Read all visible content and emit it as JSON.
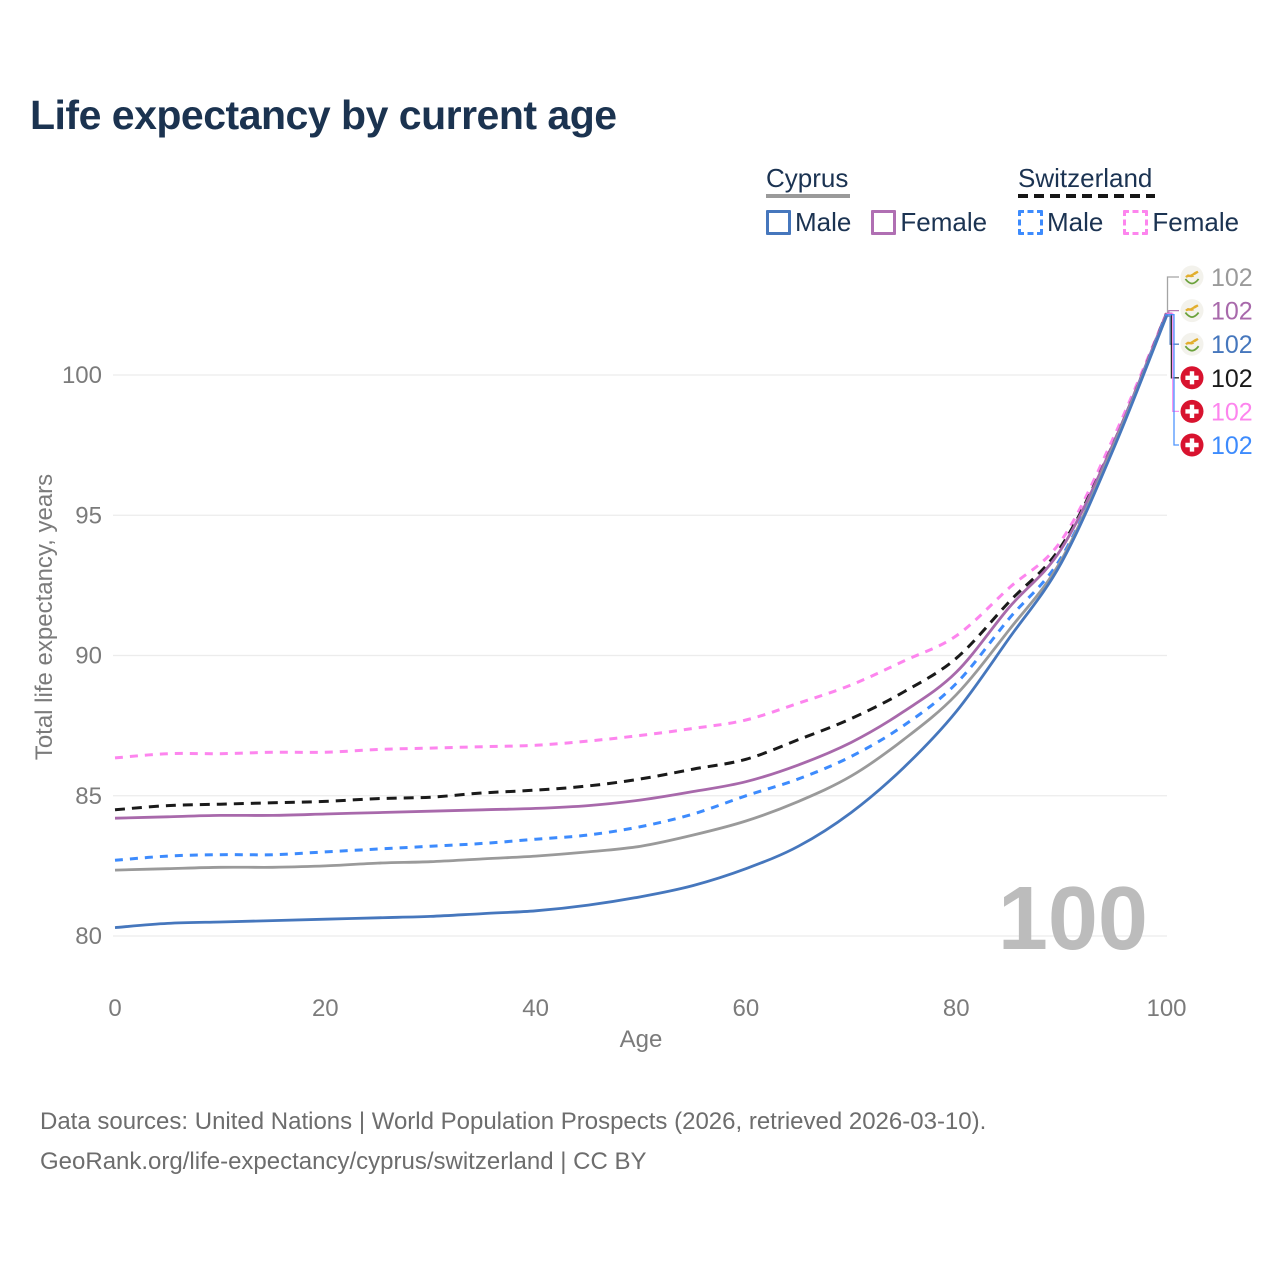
{
  "title": "Life expectancy by current age",
  "watermark_age": "100",
  "legend": {
    "groups": [
      {
        "name": "Cyprus",
        "line_style": "solid",
        "underline_color": "#9a9a9a",
        "items": [
          {
            "label": "Male",
            "color": "#4677bd"
          },
          {
            "label": "Female",
            "color": "#b06fb3"
          }
        ]
      },
      {
        "name": "Switzerland",
        "line_style": "dashed",
        "underline_color": "#161616",
        "items": [
          {
            "label": "Male",
            "color": "#3d8bfd"
          },
          {
            "label": "Female",
            "color": "#fd85ee"
          }
        ]
      }
    ]
  },
  "footer": {
    "line1": "Data sources: United Nations | World Population Prospects (2026, retrieved 2026-03-10).",
    "line2": "GeoRank.org/life-expectancy/cyprus/switzerland | CC BY"
  },
  "chart_data": {
    "type": "line",
    "title": "Life expectancy by current age",
    "xlabel": "Age",
    "ylabel": "Total life expectancy, years",
    "xlim": [
      0,
      100
    ],
    "ylim": [
      79.5,
      102.5
    ],
    "x_ticks": [
      0,
      20,
      40,
      60,
      80,
      100
    ],
    "y_ticks": [
      80,
      85,
      90,
      95,
      100
    ],
    "grid": "horizontal-only",
    "legend_position": "top-right",
    "current_age_watermark": 100,
    "ages": [
      0,
      5,
      10,
      15,
      20,
      25,
      30,
      35,
      40,
      45,
      50,
      55,
      60,
      65,
      70,
      75,
      80,
      85,
      90,
      95,
      100
    ],
    "series": [
      {
        "id": "ch-female",
        "name": "Switzerland Female",
        "country": "Switzerland",
        "sex": "female",
        "color": "#fd85ee",
        "dash": "dashed",
        "end_label": "102",
        "flag": "switzerland",
        "label_row": 4,
        "values": [
          86.35,
          86.5,
          86.5,
          86.55,
          86.55,
          86.65,
          86.7,
          86.75,
          86.8,
          86.95,
          87.15,
          87.4,
          87.7,
          88.3,
          88.95,
          89.8,
          90.7,
          92.4,
          94.1,
          97.8,
          102.2
        ]
      },
      {
        "id": "ch-both",
        "name": "Switzerland Both sexes",
        "country": "Switzerland",
        "sex": "both",
        "color": "#1a1a1a",
        "dash": "dashed",
        "end_label": "102",
        "flag": "switzerland",
        "label_row": 3,
        "values": [
          84.5,
          84.65,
          84.7,
          84.75,
          84.8,
          84.9,
          84.95,
          85.1,
          85.2,
          85.35,
          85.6,
          85.95,
          86.3,
          87.0,
          87.75,
          88.7,
          89.9,
          91.9,
          93.9,
          97.6,
          102.2
        ]
      },
      {
        "id": "cy-female",
        "name": "Cyprus Female",
        "country": "Cyprus",
        "sex": "female",
        "color": "#a869ab",
        "dash": "solid",
        "end_label": "102",
        "flag": "cyprus",
        "label_row": 1,
        "values": [
          84.2,
          84.25,
          84.3,
          84.3,
          84.35,
          84.4,
          84.45,
          84.5,
          84.55,
          84.65,
          84.85,
          85.15,
          85.5,
          86.1,
          86.9,
          88.0,
          89.4,
          91.7,
          93.8,
          97.6,
          102.2
        ]
      },
      {
        "id": "ch-male",
        "name": "Switzerland Male",
        "country": "Switzerland",
        "sex": "male",
        "color": "#3d8bfd",
        "dash": "dashed",
        "end_label": "102",
        "flag": "switzerland",
        "label_row": 5,
        "values": [
          82.7,
          82.85,
          82.9,
          82.9,
          83.0,
          83.1,
          83.2,
          83.3,
          83.45,
          83.6,
          83.9,
          84.35,
          85.0,
          85.6,
          86.4,
          87.5,
          89.0,
          91.3,
          93.5,
          97.5,
          102.15
        ]
      },
      {
        "id": "cy-both",
        "name": "Cyprus Both sexes",
        "country": "Cyprus",
        "sex": "both",
        "color": "#9a9a9a",
        "dash": "solid",
        "end_label": "102",
        "flag": "cyprus",
        "label_row": 0,
        "values": [
          82.35,
          82.4,
          82.45,
          82.45,
          82.5,
          82.6,
          82.65,
          82.75,
          82.85,
          83.0,
          83.2,
          83.6,
          84.1,
          84.8,
          85.7,
          87.0,
          88.6,
          90.9,
          93.4,
          97.5,
          102.1
        ]
      },
      {
        "id": "cy-male",
        "name": "Cyprus Male",
        "country": "Cyprus",
        "sex": "male",
        "color": "#4677bd",
        "dash": "solid",
        "end_label": "102",
        "flag": "cyprus",
        "label_row": 2,
        "values": [
          80.3,
          80.45,
          80.5,
          80.55,
          80.6,
          80.65,
          80.7,
          80.8,
          80.9,
          81.1,
          81.4,
          81.8,
          82.4,
          83.2,
          84.4,
          86.0,
          88.0,
          90.6,
          93.3,
          97.4,
          102.1
        ]
      }
    ]
  }
}
